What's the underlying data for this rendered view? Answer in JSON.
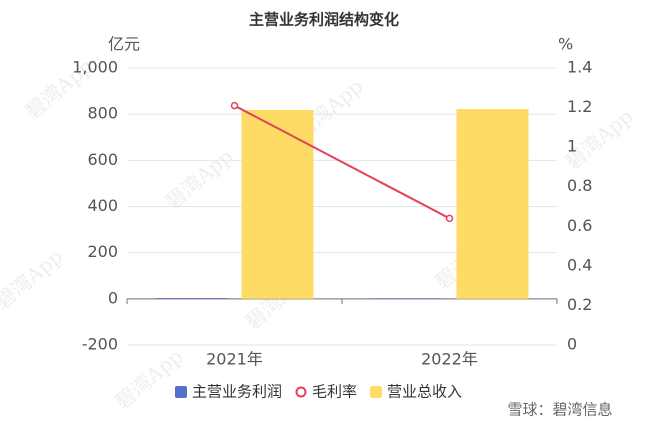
{
  "chart_data": {
    "type": "bar",
    "title": "主营业务利润结构变化",
    "y_label": "亿元",
    "y2_label": "%",
    "categories": [
      "2021年",
      "2022年"
    ],
    "series": [
      {
        "name": "主营业务利润",
        "type": "bar",
        "color": "#5470c6",
        "values": [
          3,
          2
        ]
      },
      {
        "name": "毛利率",
        "type": "line",
        "axis": "y2",
        "color": "#e0435c",
        "values": [
          1.21,
          0.64
        ]
      },
      {
        "name": "营业总收入",
        "type": "bar",
        "color": "#fedb65",
        "values": [
          818,
          822
        ]
      }
    ],
    "ylim": [
      -200,
      1000
    ],
    "yticks": [
      -200,
      0,
      200,
      400,
      600,
      800,
      {
        "value": 1000,
        "label": "1,000"
      }
    ],
    "y2lim": [
      0,
      1.4
    ],
    "y2ticks": [
      0,
      0.2,
      0.4,
      0.6,
      0.8,
      1,
      1.2,
      1.4
    ],
    "grid": true,
    "legend": "bottom",
    "watermark": "碧湾App",
    "source": "雪球：碧湾信息"
  }
}
